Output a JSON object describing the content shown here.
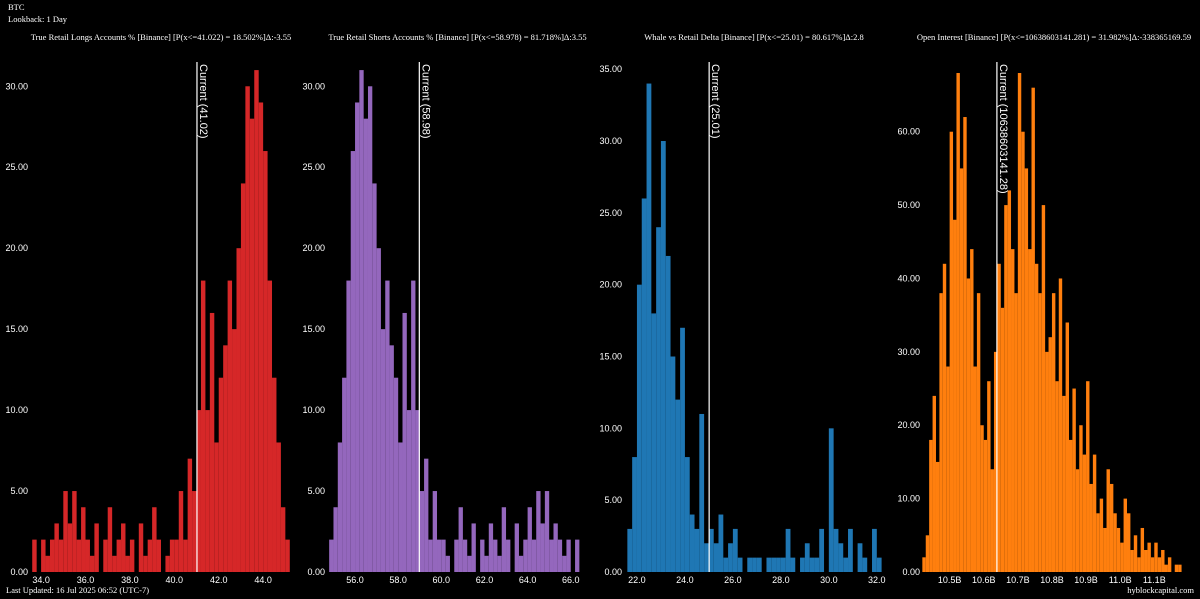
{
  "header": {
    "symbol": "BTC",
    "lookback": "Lookback: 1 Day"
  },
  "footer": {
    "updated": "Last Updated: 16 Jul 2025 06:52 (UTC-7)",
    "source": "hyblockcapital.com"
  },
  "chart_data": [
    {
      "type": "histogram",
      "title": "True Retail Longs Accounts % [Binance] [P(x<=41.022) = 18.502%]Δ:-3.55",
      "color": "#d62728",
      "bins": [
        33.6,
        33.8,
        34,
        34.2,
        34.4,
        34.6,
        34.8,
        35,
        35.2,
        35.4,
        35.6,
        35.8,
        36,
        36.2,
        36.4,
        36.6,
        36.8,
        37,
        37.2,
        37.4,
        37.6,
        37.8,
        38,
        38.2,
        38.4,
        38.6,
        38.8,
        39,
        39.2,
        39.4,
        39.6,
        39.8,
        40,
        40.2,
        40.4,
        40.6,
        40.8,
        41,
        41.2,
        41.4,
        41.6,
        41.8,
        42,
        42.2,
        42.4,
        42.6,
        42.8,
        43,
        43.2,
        43.4,
        43.6,
        43.8,
        44,
        44.2,
        44.4,
        44.6,
        44.8,
        45,
        45.2
      ],
      "values": [
        2,
        0,
        2,
        1,
        2,
        3,
        2,
        5,
        3,
        5,
        2,
        4,
        2,
        1,
        3,
        0,
        2,
        4,
        1,
        2,
        3,
        1,
        2,
        0,
        3,
        1,
        2,
        4,
        2,
        0,
        1,
        2,
        2,
        5,
        2,
        7,
        5,
        10,
        18,
        10,
        16,
        8,
        12,
        14,
        18,
        15,
        20,
        24,
        30,
        28,
        31,
        29,
        26,
        18,
        12,
        8,
        4,
        2
      ],
      "xlim": [
        33.5,
        45.3
      ],
      "ylim": [
        0,
        31.5
      ],
      "xticks": [
        {
          "value": 34,
          "label": "34.0"
        },
        {
          "value": 36,
          "label": "36.0"
        },
        {
          "value": 38,
          "label": "38.0"
        },
        {
          "value": 40,
          "label": "40.0"
        },
        {
          "value": 42,
          "label": "42.0"
        },
        {
          "value": 44,
          "label": "44.0"
        }
      ],
      "yticks": [
        {
          "value": 0,
          "label": "0.00"
        },
        {
          "value": 5,
          "label": "5.00"
        },
        {
          "value": 10,
          "label": "10.00"
        },
        {
          "value": 15,
          "label": "15.00"
        },
        {
          "value": 20,
          "label": "20.00"
        },
        {
          "value": 25,
          "label": "25.00"
        },
        {
          "value": 30,
          "label": "30.00"
        }
      ],
      "current": 41.02,
      "current_label": "Current (41.02)"
    },
    {
      "type": "histogram",
      "title": "True Retail Shorts Accounts % [Binance] [P(x<=58.978) = 81.718%]Δ:3.55",
      "color": "#9467bd",
      "bins": [
        54.8,
        55,
        55.2,
        55.4,
        55.6,
        55.8,
        56,
        56.2,
        56.4,
        56.6,
        56.8,
        57,
        57.2,
        57.4,
        57.6,
        57.8,
        58,
        58.2,
        58.4,
        58.6,
        58.8,
        59,
        59.2,
        59.4,
        59.6,
        59.8,
        60,
        60.2,
        60.4,
        60.6,
        60.8,
        61,
        61.2,
        61.4,
        61.6,
        61.8,
        62,
        62.2,
        62.4,
        62.6,
        62.8,
        63,
        63.2,
        63.4,
        63.6,
        63.8,
        64,
        64.2,
        64.4,
        64.6,
        64.8,
        65,
        65.2,
        65.4,
        65.6,
        65.8,
        66,
        66.2,
        66.4
      ],
      "values": [
        2,
        4,
        8,
        12,
        18,
        26,
        29,
        31,
        28,
        30,
        24,
        20,
        15,
        18,
        14,
        12,
        8,
        16,
        10,
        18,
        10,
        5,
        7,
        2,
        5,
        2,
        2,
        1,
        0,
        2,
        4,
        2,
        1,
        3,
        0,
        2,
        1,
        3,
        2,
        1,
        4,
        2,
        0,
        3,
        1,
        2,
        4,
        2,
        5,
        3,
        5,
        2,
        3,
        2,
        1,
        2,
        0,
        2
      ],
      "xlim": [
        54.7,
        66.8
      ],
      "ylim": [
        0,
        31.5
      ],
      "xticks": [
        {
          "value": 56,
          "label": "56.0"
        },
        {
          "value": 58,
          "label": "58.0"
        },
        {
          "value": 60,
          "label": "60.0"
        },
        {
          "value": 62,
          "label": "62.0"
        },
        {
          "value": 64,
          "label": "64.0"
        },
        {
          "value": 66,
          "label": "66.0"
        }
      ],
      "yticks": [
        {
          "value": 0,
          "label": "0.00"
        },
        {
          "value": 5,
          "label": "5.00"
        },
        {
          "value": 10,
          "label": "10.00"
        },
        {
          "value": 15,
          "label": "15.00"
        },
        {
          "value": 20,
          "label": "20.00"
        },
        {
          "value": 25,
          "label": "25.00"
        },
        {
          "value": 30,
          "label": "30.00"
        }
      ],
      "current": 58.98,
      "current_label": "Current (58.98)"
    },
    {
      "type": "histogram",
      "title": "Whale vs Retail Delta [Binance] [P(x<=25.01) = 80.617%]Δ:2.8",
      "color": "#1f77b4",
      "bins": [
        21.6,
        21.8,
        22,
        22.2,
        22.4,
        22.6,
        22.8,
        23,
        23.2,
        23.4,
        23.6,
        23.8,
        24,
        24.2,
        24.4,
        24.6,
        24.8,
        25,
        25.2,
        25.4,
        25.6,
        25.8,
        26,
        26.2,
        26.4,
        26.6,
        26.8,
        27,
        27.2,
        27.4,
        27.6,
        27.8,
        28,
        28.2,
        28.4,
        28.6,
        28.8,
        29,
        29.2,
        29.4,
        29.6,
        29.8,
        30,
        30.2,
        30.4,
        30.6,
        30.8,
        31,
        31.2,
        31.4,
        31.6,
        31.8,
        32,
        32.2
      ],
      "values": [
        3,
        8,
        20,
        26,
        34,
        18,
        24,
        30,
        22,
        15,
        12,
        17,
        8,
        4,
        3,
        11,
        2,
        3,
        2,
        4,
        1,
        2,
        3,
        1,
        0,
        1,
        1,
        1,
        0,
        1,
        1,
        1,
        1,
        3,
        1,
        0,
        1,
        2,
        1,
        1,
        3,
        0,
        10,
        3,
        2,
        1,
        3,
        0,
        2,
        1,
        0,
        3,
        1
      ],
      "xlim": [
        21.46,
        32.3
      ],
      "ylim": [
        0,
        35.5
      ],
      "xticks": [
        {
          "value": 22,
          "label": "22.0"
        },
        {
          "value": 24,
          "label": "24.0"
        },
        {
          "value": 26,
          "label": "26.0"
        },
        {
          "value": 28,
          "label": "28.0"
        },
        {
          "value": 30,
          "label": "30.0"
        },
        {
          "value": 32,
          "label": "32.0"
        }
      ],
      "yticks": [
        {
          "value": 0,
          "label": "0.00"
        },
        {
          "value": 5,
          "label": "5.00"
        },
        {
          "value": 10,
          "label": "10.00"
        },
        {
          "value": 15,
          "label": "15.00"
        },
        {
          "value": 20,
          "label": "20.00"
        },
        {
          "value": 25,
          "label": "25.00"
        },
        {
          "value": 30,
          "label": "30.00"
        },
        {
          "value": 35,
          "label": "35.00"
        }
      ],
      "current": 25.01,
      "current_label": "Current (25.01)"
    },
    {
      "type": "histogram",
      "title": "Open Interest [Binance] [P(x<=10638603141.281) = 31.982%]Δ:-338365169.59",
      "color": "#ff7f0e",
      "bins": [
        10420000000,
        10430000000,
        10440000000,
        10450000000,
        10460000000,
        10470000000,
        10480000000,
        10490000000,
        10500000000,
        10510000000,
        10520000000,
        10530000000,
        10540000000,
        10550000000,
        10560000000,
        10570000000,
        10580000000,
        10590000000,
        10600000000,
        10610000000,
        10620000000,
        10630000000,
        10640000000,
        10650000000,
        10660000000,
        10670000000,
        10680000000,
        10690000000,
        10700000000,
        10710000000,
        10720000000,
        10730000000,
        10740000000,
        10750000000,
        10760000000,
        10770000000,
        10780000000,
        10790000000,
        10800000000,
        10810000000,
        10820000000,
        10830000000,
        10840000000,
        10850000000,
        10860000000,
        10870000000,
        10880000000,
        10890000000,
        10900000000,
        10910000000,
        10920000000,
        10930000000,
        10940000000,
        10950000000,
        10960000000,
        10970000000,
        10980000000,
        10990000000,
        11000000000,
        11010000000,
        11020000000,
        11030000000,
        11040000000,
        11050000000,
        11060000000,
        11070000000,
        11080000000,
        11090000000,
        11100000000,
        11110000000,
        11120000000,
        11130000000,
        11140000000,
        11150000000,
        11160000000,
        11170000000,
        11180000000
      ],
      "values": [
        2,
        5,
        18,
        24,
        15,
        38,
        42,
        28,
        60,
        48,
        68,
        55,
        62,
        40,
        44,
        28,
        38,
        20,
        18,
        26,
        14,
        30,
        42,
        36,
        50,
        52,
        44,
        38,
        68,
        60,
        55,
        44,
        66,
        42,
        38,
        50,
        30,
        32,
        38,
        26,
        40,
        24,
        34,
        18,
        25,
        14,
        20,
        16,
        26,
        12,
        16,
        8,
        10,
        6,
        14,
        12,
        8,
        6,
        4,
        10,
        8,
        3,
        5,
        2,
        6,
        3,
        4,
        2,
        4,
        2,
        3,
        1,
        2,
        0,
        1,
        1
      ],
      "xlim": [
        10419000000,
        11193000000
      ],
      "ylim": [
        0,
        69.5
      ],
      "xticks": [
        {
          "value": 10500000000,
          "label": "10.5B"
        },
        {
          "value": 10600000000,
          "label": "10.6B"
        },
        {
          "value": 10700000000,
          "label": "10.7B"
        },
        {
          "value": 10800000000,
          "label": "10.8B"
        },
        {
          "value": 10900000000,
          "label": "10.9B"
        },
        {
          "value": 11000000000,
          "label": "11.0B"
        },
        {
          "value": 11100000000,
          "label": "11.1B"
        }
      ],
      "yticks": [
        {
          "value": 0,
          "label": "0.00"
        },
        {
          "value": 10,
          "label": "10.00"
        },
        {
          "value": 20,
          "label": "20.00"
        },
        {
          "value": 30,
          "label": "30.00"
        },
        {
          "value": 40,
          "label": "40.00"
        },
        {
          "value": 50,
          "label": "50.00"
        },
        {
          "value": 60,
          "label": "60.00"
        }
      ],
      "current": 10638603141.28,
      "current_label": "Current (10638603141.28)"
    }
  ]
}
